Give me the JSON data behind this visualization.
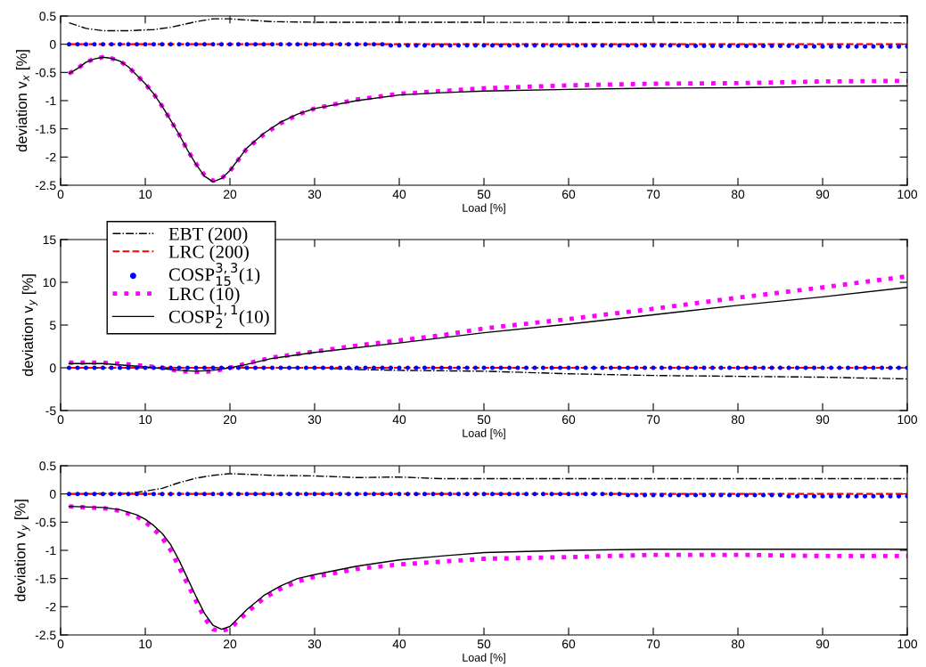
{
  "chart_data": [
    {
      "type": "line",
      "xlabel": "Load [%]",
      "ylabel": "deviation v$_{x}$ [%]",
      "xlim": [
        0,
        100
      ],
      "ylim": [
        -2.5,
        0.5
      ],
      "xticks": [
        0,
        10,
        20,
        30,
        40,
        50,
        60,
        70,
        80,
        90,
        100
      ],
      "yticks": [
        -2.5,
        -2,
        -1.5,
        -1,
        -0.5,
        0,
        0.5
      ],
      "grid": false,
      "legend": false,
      "series": [
        {
          "type": "line",
          "color": "#000000",
          "line_style": "dashdot",
          "x": [
            1,
            3,
            5,
            8,
            11,
            13,
            16,
            18,
            20,
            25,
            30,
            40,
            100
          ],
          "values": [
            0.38,
            0.28,
            0.24,
            0.24,
            0.26,
            0.3,
            0.4,
            0.45,
            0.45,
            0.4,
            0.39,
            0.39,
            0.38
          ]
        },
        {
          "type": "line",
          "color": "#ff0000",
          "line_style": "dashed",
          "x": [
            1,
            100
          ],
          "values": [
            0,
            0
          ]
        },
        {
          "type": "scatter",
          "color": "#0000ff",
          "marker": "circle",
          "x": [
            1,
            2,
            3,
            4,
            5,
            6,
            7,
            8,
            9,
            10,
            11,
            12,
            13,
            14,
            15,
            16,
            17,
            18,
            19,
            20,
            21,
            22,
            23,
            24,
            25,
            26,
            27,
            28,
            29,
            30,
            31,
            32,
            33,
            34,
            35,
            36,
            37,
            38,
            39,
            40,
            41,
            42,
            43,
            44,
            45,
            46,
            47,
            48,
            49,
            50,
            51,
            52,
            53,
            54,
            55,
            56,
            57,
            58,
            59,
            60,
            61,
            62,
            63,
            64,
            65,
            66,
            67,
            68,
            69,
            70,
            71,
            72,
            73,
            74,
            75,
            76,
            77,
            78,
            79,
            80,
            81,
            82,
            83,
            84,
            85,
            86,
            87,
            88,
            89,
            90,
            91,
            92,
            93,
            94,
            95,
            96,
            97,
            98,
            99,
            100
          ],
          "values": [
            0,
            0,
            0,
            0,
            0,
            0,
            0,
            0,
            0,
            0,
            0,
            0,
            0,
            0,
            0,
            0,
            0,
            0,
            0,
            0,
            0,
            0,
            0,
            0,
            0,
            0,
            0,
            0,
            0,
            0,
            0,
            0,
            0,
            0,
            0,
            0,
            0,
            0,
            -0.02,
            -0.02,
            -0.02,
            -0.02,
            -0.02,
            -0.02,
            -0.02,
            -0.02,
            -0.02,
            -0.02,
            -0.02,
            -0.02,
            -0.02,
            -0.02,
            -0.02,
            -0.02,
            -0.02,
            -0.02,
            -0.02,
            -0.02,
            -0.02,
            -0.02,
            -0.02,
            -0.02,
            -0.02,
            -0.02,
            -0.02,
            -0.02,
            -0.02,
            -0.02,
            -0.02,
            -0.02,
            -0.02,
            -0.02,
            -0.02,
            -0.03,
            -0.03,
            -0.03,
            -0.03,
            -0.03,
            -0.03,
            -0.03,
            -0.03,
            -0.03,
            -0.03,
            -0.03,
            -0.03,
            -0.03,
            -0.04,
            -0.04,
            -0.04,
            -0.04,
            -0.04,
            -0.04,
            -0.04,
            -0.04,
            -0.04,
            -0.04,
            -0.04,
            -0.04,
            -0.04,
            -0.04
          ]
        },
        {
          "type": "line",
          "color": "#ff00ff",
          "line_style": "dotted",
          "x": [
            1,
            2,
            3,
            4,
            5,
            6,
            7,
            8,
            9,
            10,
            11,
            12,
            13,
            14,
            15,
            16,
            17,
            18,
            19,
            20,
            21,
            22,
            24,
            26,
            28,
            30,
            35,
            40,
            45,
            50,
            60,
            70,
            80,
            90,
            100
          ],
          "values": [
            -0.52,
            -0.43,
            -0.32,
            -0.26,
            -0.23,
            -0.25,
            -0.3,
            -0.4,
            -0.55,
            -0.7,
            -0.88,
            -1.1,
            -1.35,
            -1.6,
            -1.88,
            -2.12,
            -2.32,
            -2.42,
            -2.38,
            -2.25,
            -2.05,
            -1.85,
            -1.6,
            -1.4,
            -1.25,
            -1.14,
            -0.98,
            -0.88,
            -0.83,
            -0.78,
            -0.73,
            -0.7,
            -0.69,
            -0.66,
            -0.65
          ]
        },
        {
          "type": "line",
          "color": "#000000",
          "line_style": "solid",
          "x": [
            1,
            2,
            3,
            4,
            5,
            6,
            7,
            8,
            9,
            10,
            11,
            12,
            13,
            14,
            15,
            16,
            17,
            18,
            19,
            20,
            21,
            22,
            24,
            26,
            28,
            30,
            35,
            40,
            45,
            50,
            60,
            70,
            80,
            90,
            100
          ],
          "values": [
            -0.52,
            -0.43,
            -0.32,
            -0.26,
            -0.23,
            -0.25,
            -0.3,
            -0.4,
            -0.55,
            -0.7,
            -0.88,
            -1.1,
            -1.35,
            -1.6,
            -1.88,
            -2.13,
            -2.34,
            -2.44,
            -2.38,
            -2.24,
            -2.04,
            -1.84,
            -1.58,
            -1.38,
            -1.24,
            -1.14,
            -1.0,
            -0.9,
            -0.86,
            -0.83,
            -0.8,
            -0.78,
            -0.77,
            -0.75,
            -0.74
          ]
        }
      ]
    },
    {
      "type": "line",
      "xlabel": "Load [%]",
      "ylabel": "deviation v$_{y}$ [%]",
      "xlim": [
        0,
        100
      ],
      "ylim": [
        -5,
        15
      ],
      "xticks": [
        0,
        10,
        20,
        30,
        40,
        50,
        60,
        70,
        80,
        90,
        100
      ],
      "yticks": [
        -5,
        0,
        5,
        10,
        15
      ],
      "grid": false,
      "legend": "top left",
      "series": [
        {
          "type": "line",
          "name": "EBT (200)",
          "color": "#000000",
          "line_style": "dashdot",
          "x": [
            1,
            20,
            30,
            35,
            40,
            50,
            60,
            70,
            80,
            90,
            100
          ],
          "values": [
            0,
            0,
            0,
            -0.2,
            -0.3,
            -0.4,
            -0.7,
            -0.9,
            -1.0,
            -1.1,
            -1.3
          ]
        },
        {
          "type": "line",
          "name": "LRC (200)",
          "color": "#ff0000",
          "line_style": "dashed",
          "x": [
            1,
            100
          ],
          "values": [
            0,
            0
          ]
        },
        {
          "type": "scatter",
          "name": "COSP$^{3,3}$$_{15}$(1)",
          "color": "#0000ff",
          "marker": "circle",
          "x": [
            1,
            2,
            3,
            4,
            5,
            6,
            7,
            8,
            9,
            10,
            11,
            12,
            13,
            14,
            15,
            16,
            17,
            18,
            19,
            20,
            21,
            22,
            23,
            24,
            25,
            26,
            27,
            28,
            29,
            30,
            31,
            32,
            33,
            34,
            35,
            36,
            37,
            38,
            39,
            40,
            41,
            42,
            43,
            44,
            45,
            46,
            47,
            48,
            49,
            50,
            51,
            52,
            53,
            54,
            55,
            56,
            57,
            58,
            59,
            60,
            61,
            62,
            63,
            64,
            65,
            66,
            67,
            68,
            69,
            70,
            71,
            72,
            73,
            74,
            75,
            76,
            77,
            78,
            79,
            80,
            81,
            82,
            83,
            84,
            85,
            86,
            87,
            88,
            89,
            90,
            91,
            92,
            93,
            94,
            95,
            96,
            97,
            98,
            99,
            100
          ],
          "values": [
            0,
            0,
            0,
            0,
            0,
            0,
            0,
            0,
            0,
            0,
            0,
            0,
            0,
            0,
            0,
            0,
            0,
            0,
            0,
            0,
            0,
            0,
            0,
            0,
            0,
            0,
            0,
            0,
            0,
            0,
            0,
            0,
            0,
            0,
            0,
            0,
            0,
            0,
            0,
            0,
            0,
            0,
            0,
            0,
            0,
            0,
            0,
            0,
            0,
            0,
            0,
            0,
            0,
            0,
            0,
            0,
            0,
            0,
            0,
            0,
            0,
            0,
            0,
            0,
            0,
            0,
            0,
            0,
            0,
            0,
            0,
            0,
            0,
            0,
            0,
            0,
            0,
            0,
            0,
            0,
            0,
            0,
            0,
            0,
            0,
            0,
            0,
            0,
            0,
            0,
            0,
            0,
            0,
            0,
            0,
            0,
            0,
            0,
            0,
            0
          ]
        },
        {
          "type": "line",
          "name": "LRC (10)",
          "color": "#ff00ff",
          "line_style": "dotted",
          "x": [
            1,
            5,
            8,
            10,
            12,
            14,
            16,
            18,
            20,
            22,
            25,
            30,
            35,
            40,
            45,
            50,
            60,
            70,
            80,
            90,
            100
          ],
          "values": [
            0.6,
            0.6,
            0.4,
            0.2,
            0,
            -0.4,
            -0.5,
            -0.4,
            0,
            0.5,
            1.2,
            1.9,
            2.6,
            3.2,
            3.8,
            4.6,
            5.7,
            6.9,
            8.2,
            9.4,
            10.7
          ]
        },
        {
          "type": "line",
          "name": "COSP$^{1,1}$$_{2}$(10)",
          "color": "#000000",
          "line_style": "solid",
          "x": [
            1,
            5,
            10,
            14,
            16,
            18,
            20,
            22,
            25,
            30,
            40,
            50,
            60,
            70,
            80,
            90,
            100
          ],
          "values": [
            0.5,
            0.5,
            0.1,
            -0.3,
            -0.4,
            -0.3,
            0,
            0.4,
            1.1,
            1.8,
            2.9,
            4.1,
            5.1,
            6.2,
            7.3,
            8.3,
            9.4
          ]
        }
      ]
    },
    {
      "type": "line",
      "xlabel": "Load [%]",
      "ylabel": "deviation v$_{y}$ [%]",
      "xlim": [
        0,
        100
      ],
      "ylim": [
        -2.5,
        0.5
      ],
      "xticks": [
        0,
        10,
        20,
        30,
        40,
        50,
        60,
        70,
        80,
        90,
        100
      ],
      "yticks": [
        -2.5,
        -2,
        -1.5,
        -1,
        -0.5,
        0,
        0.5
      ],
      "grid": false,
      "legend": false,
      "series": [
        {
          "type": "line",
          "color": "#000000",
          "line_style": "dashdot",
          "x": [
            1,
            8,
            10,
            12,
            14,
            16,
            18,
            20,
            25,
            30,
            35,
            40,
            45,
            100
          ],
          "values": [
            0,
            0.01,
            0.05,
            0.1,
            0.2,
            0.28,
            0.33,
            0.36,
            0.33,
            0.32,
            0.29,
            0.3,
            0.27,
            0.27
          ]
        },
        {
          "type": "line",
          "color": "#ff0000",
          "line_style": "dashed",
          "x": [
            1,
            100
          ],
          "values": [
            0,
            0
          ]
        },
        {
          "type": "scatter",
          "color": "#0000ff",
          "marker": "circle",
          "x": [
            1,
            2,
            3,
            4,
            5,
            6,
            7,
            8,
            9,
            10,
            11,
            12,
            13,
            14,
            15,
            16,
            17,
            18,
            19,
            20,
            21,
            22,
            23,
            24,
            25,
            26,
            27,
            28,
            29,
            30,
            31,
            32,
            33,
            34,
            35,
            36,
            37,
            38,
            39,
            40,
            41,
            42,
            43,
            44,
            45,
            46,
            47,
            48,
            49,
            50,
            51,
            52,
            53,
            54,
            55,
            56,
            57,
            58,
            59,
            60,
            61,
            62,
            63,
            64,
            65,
            66,
            67,
            68,
            69,
            70,
            71,
            72,
            73,
            74,
            75,
            76,
            77,
            78,
            79,
            80,
            81,
            82,
            83,
            84,
            85,
            86,
            87,
            88,
            89,
            90,
            91,
            92,
            93,
            94,
            95,
            96,
            97,
            98,
            99,
            100
          ],
          "values": [
            0,
            0,
            0,
            0,
            0,
            0,
            0,
            0,
            0,
            0,
            0,
            0,
            0,
            0,
            0,
            0,
            0,
            0,
            0,
            0,
            0,
            0,
            0,
            0,
            0,
            0,
            0,
            0,
            0,
            0,
            0,
            0,
            0,
            0,
            0,
            0,
            0,
            0,
            0,
            0,
            0,
            0,
            0,
            0,
            0,
            0,
            0,
            0,
            0,
            0,
            0,
            0,
            0,
            0,
            0,
            0,
            0,
            0,
            0,
            0,
            0,
            0,
            0,
            0,
            0,
            0,
            -0.02,
            -0.02,
            -0.02,
            -0.02,
            -0.02,
            -0.02,
            -0.02,
            -0.02,
            -0.02,
            -0.02,
            -0.02,
            -0.02,
            -0.02,
            -0.02,
            -0.02,
            -0.02,
            -0.02,
            -0.02,
            -0.02,
            -0.04,
            -0.04,
            -0.04,
            -0.04,
            -0.04,
            -0.04,
            -0.04,
            -0.04,
            -0.04,
            -0.04,
            -0.04,
            -0.04,
            -0.04,
            -0.04,
            -0.04
          ]
        },
        {
          "type": "line",
          "color": "#ff00ff",
          "line_style": "dotted",
          "x": [
            1,
            3,
            5,
            7,
            9,
            10,
            11,
            12,
            13,
            14,
            15,
            16,
            17,
            18,
            19,
            20,
            21,
            22,
            24,
            26,
            28,
            30,
            35,
            40,
            45,
            50,
            60,
            70,
            80,
            90,
            100
          ],
          "values": [
            -0.22,
            -0.24,
            -0.25,
            -0.3,
            -0.4,
            -0.5,
            -0.62,
            -0.78,
            -1.0,
            -1.3,
            -1.6,
            -1.9,
            -2.2,
            -2.4,
            -2.44,
            -2.38,
            -2.25,
            -2.1,
            -1.85,
            -1.68,
            -1.55,
            -1.47,
            -1.33,
            -1.25,
            -1.2,
            -1.15,
            -1.12,
            -1.08,
            -1.08,
            -1.1,
            -1.1
          ]
        },
        {
          "type": "line",
          "color": "#000000",
          "line_style": "solid",
          "x": [
            1,
            5,
            7,
            9,
            10,
            11,
            12,
            13,
            14,
            15,
            16,
            17,
            18,
            19,
            20,
            21,
            22,
            24,
            26,
            28,
            30,
            35,
            40,
            45,
            50,
            60,
            70,
            80,
            90,
            100
          ],
          "values": [
            -0.22,
            -0.24,
            -0.28,
            -0.37,
            -0.45,
            -0.56,
            -0.7,
            -0.9,
            -1.18,
            -1.5,
            -1.82,
            -2.12,
            -2.33,
            -2.4,
            -2.35,
            -2.2,
            -2.05,
            -1.8,
            -1.63,
            -1.5,
            -1.43,
            -1.28,
            -1.17,
            -1.1,
            -1.04,
            -1.0,
            -0.98,
            -0.98,
            -0.98,
            -0.98
          ]
        }
      ]
    }
  ]
}
